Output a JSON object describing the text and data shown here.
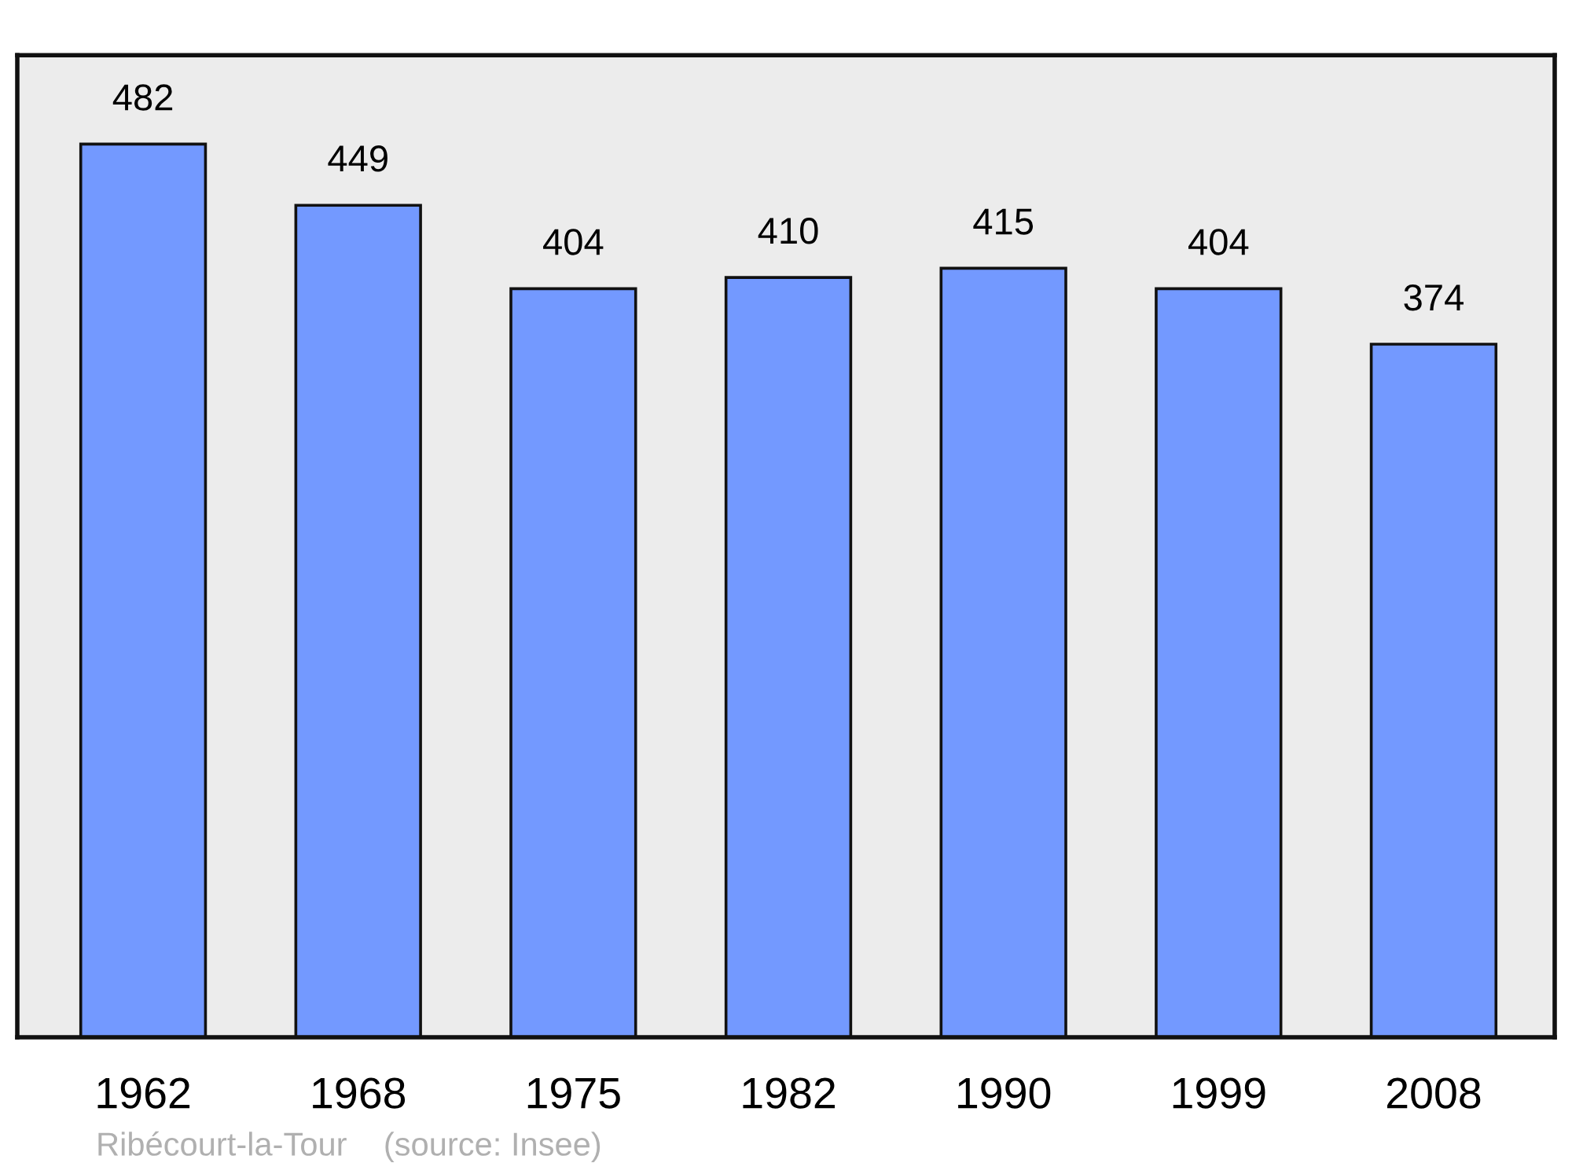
{
  "chart_data": {
    "type": "bar",
    "categories": [
      "1962",
      "1968",
      "1975",
      "1982",
      "1990",
      "1999",
      "2008"
    ],
    "values": [
      482,
      449,
      404,
      410,
      415,
      404,
      374
    ],
    "color": "#7399ff",
    "ylim": [
      0,
      530
    ],
    "tick_labels": "x",
    "data_labels": true,
    "grid": false,
    "annotations": [
      "Ribécourt-la-Tour    (source: Insee)"
    ]
  }
}
